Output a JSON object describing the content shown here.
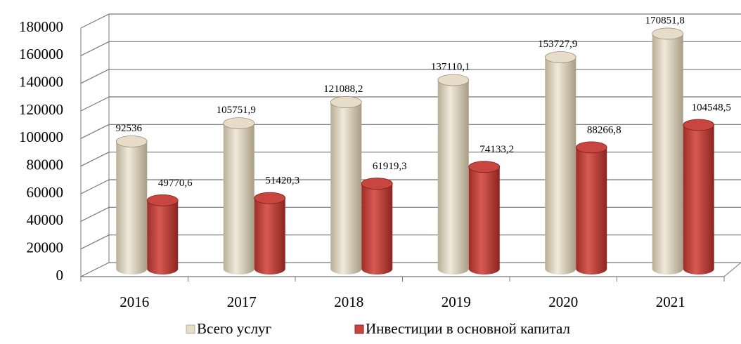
{
  "chart_data": {
    "type": "bar3d",
    "categories": [
      "2016",
      "2017",
      "2018",
      "2019",
      "2020",
      "2021"
    ],
    "series": [
      {
        "name": "Всего услуг",
        "color": "#e6dcc8",
        "values": [
          92536,
          105751.9,
          121088.2,
          137110.1,
          153727.9,
          170851.8
        ],
        "value_labels": [
          "92536",
          "105751,9",
          "121088,2",
          "137110,1",
          "153727,9",
          "170851,8"
        ]
      },
      {
        "name": "Инвестиции в основной капитал",
        "color": "#c8463f",
        "values": [
          49770.6,
          51420.3,
          61919.3,
          74133.2,
          88266.8,
          104548.5
        ],
        "value_labels": [
          "49770,6",
          "51420,3",
          "61919,3",
          "74133,2",
          "88266,8",
          "104548,5"
        ]
      }
    ],
    "ylim": [
      0,
      180000
    ],
    "yticks": [
      0,
      20000,
      40000,
      60000,
      80000,
      100000,
      120000,
      140000,
      160000,
      180000
    ],
    "grid": true,
    "legend": "bottom"
  }
}
